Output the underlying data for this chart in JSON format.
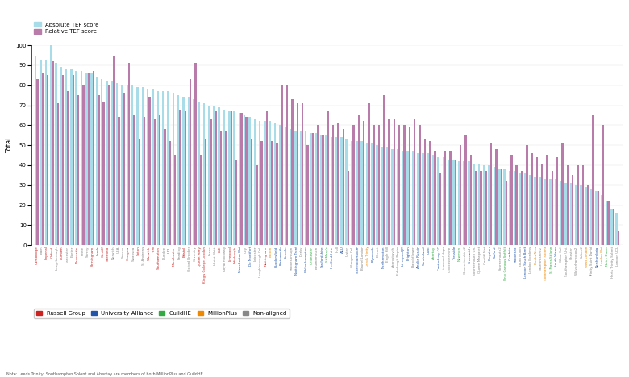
{
  "ylabel": "Total",
  "legend_items": [
    {
      "label": "Absolute TEF score",
      "color": "#a8dce8"
    },
    {
      "label": "Relative TEF score",
      "color": "#b87baa"
    }
  ],
  "group_legend": [
    {
      "label": "Russell Group",
      "color": "#cc2222"
    },
    {
      "label": "University Alliance",
      "color": "#2255aa"
    },
    {
      "label": "GuildHE",
      "color": "#33aa44"
    },
    {
      "label": "MillionPlus",
      "color": "#ee8800"
    },
    {
      "label": "Non-aligned",
      "color": "#888888"
    }
  ],
  "note": "Note: Leeds Trinity, Southampton Solent and Abertay are members of both MillionPlus and GuildHE.",
  "universities": [
    {
      "name": "Cambridge",
      "absolute": 95,
      "relative": 83,
      "group": "Russell Group"
    },
    {
      "name": "Bath",
      "absolute": 93,
      "relative": 86,
      "group": "Non-aligned"
    },
    {
      "name": "Imperial",
      "absolute": 93,
      "relative": 85,
      "group": "Russell Group"
    },
    {
      "name": "Oxford",
      "absolute": 100,
      "relative": 92,
      "group": "Russell Group"
    },
    {
      "name": "Loughborough",
      "absolute": 91,
      "relative": 71,
      "group": "Non-aligned"
    },
    {
      "name": "Durham",
      "absolute": 89,
      "relative": 85,
      "group": "Russell Group"
    },
    {
      "name": "Lancaster",
      "absolute": 88,
      "relative": 77,
      "group": "Non-aligned"
    },
    {
      "name": "Exeter",
      "absolute": 88,
      "relative": 85,
      "group": "Non-aligned"
    },
    {
      "name": "Newcastle",
      "absolute": 87,
      "relative": 75,
      "group": "Russell Group"
    },
    {
      "name": "Keele",
      "absolute": 87,
      "relative": 80,
      "group": "Non-aligned"
    },
    {
      "name": "Surrey",
      "absolute": 86,
      "relative": 86,
      "group": "Non-aligned"
    },
    {
      "name": "Birmingham",
      "absolute": 86,
      "relative": 87,
      "group": "Russell Group"
    },
    {
      "name": "Leeds",
      "absolute": 84,
      "relative": 75,
      "group": "Russell Group"
    },
    {
      "name": "Cardiff",
      "absolute": 83,
      "relative": 72,
      "group": "Russell Group"
    },
    {
      "name": "Sheffield",
      "absolute": 82,
      "relative": 80,
      "group": "Russell Group"
    },
    {
      "name": "Norwich",
      "absolute": 82,
      "relative": 95,
      "group": "Non-aligned"
    },
    {
      "name": "UEA",
      "absolute": 81,
      "relative": 64,
      "group": "Non-aligned"
    },
    {
      "name": "Sussex",
      "absolute": 80,
      "relative": 76,
      "group": "Non-aligned"
    },
    {
      "name": "Glasgow",
      "absolute": 80,
      "relative": 91,
      "group": "Russell Group"
    },
    {
      "name": "Swansea",
      "absolute": 80,
      "relative": 65,
      "group": "Non-aligned"
    },
    {
      "name": "Soton",
      "absolute": 79,
      "relative": 53,
      "group": "Russell Group"
    },
    {
      "name": "St Andrews",
      "absolute": 79,
      "relative": 64,
      "group": "Non-aligned"
    },
    {
      "name": "Warwick",
      "absolute": 78,
      "relative": 74,
      "group": "Russell Group"
    },
    {
      "name": "York",
      "absolute": 78,
      "relative": 63,
      "group": "Russell Group"
    },
    {
      "name": "Southampton",
      "absolute": 77,
      "relative": 65,
      "group": "Russell Group"
    },
    {
      "name": "Dundee",
      "absolute": 77,
      "relative": 58,
      "group": "Non-aligned"
    },
    {
      "name": "UCL",
      "absolute": 77,
      "relative": 52,
      "group": "Russell Group"
    },
    {
      "name": "Manchester",
      "absolute": 76,
      "relative": 45,
      "group": "Russell Group"
    },
    {
      "name": "Reading",
      "absolute": 75,
      "relative": 68,
      "group": "Non-aligned"
    },
    {
      "name": "Bristol",
      "absolute": 74,
      "relative": 67,
      "group": "Russell Group"
    },
    {
      "name": "Oxford Brookes",
      "absolute": 74,
      "relative": 83,
      "group": "Non-aligned"
    },
    {
      "name": "Coventry",
      "absolute": 73,
      "relative": 91,
      "group": "Non-aligned"
    },
    {
      "name": "Queen Mary",
      "absolute": 72,
      "relative": 45,
      "group": "Russell Group"
    },
    {
      "name": "King's College London",
      "absolute": 71,
      "relative": 53,
      "group": "Russell Group"
    },
    {
      "name": "Essex",
      "absolute": 70,
      "relative": 63,
      "group": "Non-aligned"
    },
    {
      "name": "Heriot-Watt",
      "absolute": 70,
      "relative": 67,
      "group": "Non-aligned"
    },
    {
      "name": "LSE",
      "absolute": 69,
      "relative": 57,
      "group": "Russell Group"
    },
    {
      "name": "Royal Holloway",
      "absolute": 68,
      "relative": 57,
      "group": "Non-aligned"
    },
    {
      "name": "Liverpool",
      "absolute": 67,
      "relative": 67,
      "group": "Russell Group"
    },
    {
      "name": "Edinburgh",
      "absolute": 67,
      "relative": 43,
      "group": "Russell Group"
    },
    {
      "name": "Manchester Met",
      "absolute": 66,
      "relative": 66,
      "group": "University Alliance"
    },
    {
      "name": "City",
      "absolute": 65,
      "relative": 64,
      "group": "Non-aligned"
    },
    {
      "name": "De Montfort",
      "absolute": 64,
      "relative": 53,
      "group": "University Alliance"
    },
    {
      "name": "Leicester",
      "absolute": 63,
      "relative": 40,
      "group": "Non-aligned"
    },
    {
      "name": "Loughborough Col.",
      "absolute": 62,
      "relative": 52,
      "group": "Non-aligned"
    },
    {
      "name": "Nottingham",
      "absolute": 62,
      "relative": 67,
      "group": "Russell Group"
    },
    {
      "name": "Bolton",
      "absolute": 62,
      "relative": 52,
      "group": "MillionPlus"
    },
    {
      "name": "Huddersfield",
      "absolute": 61,
      "relative": 51,
      "group": "University Alliance"
    },
    {
      "name": "Portsmouth",
      "absolute": 60,
      "relative": 80,
      "group": "University Alliance"
    },
    {
      "name": "Lincoln",
      "absolute": 59,
      "relative": 80,
      "group": "University Alliance"
    },
    {
      "name": "Middlesbrough",
      "absolute": 58,
      "relative": 73,
      "group": "Non-aligned"
    },
    {
      "name": "Nottingham Trent",
      "absolute": 57,
      "relative": 71,
      "group": "University Alliance"
    },
    {
      "name": "Derby",
      "absolute": 57,
      "relative": 71,
      "group": "Non-aligned"
    },
    {
      "name": "Wolverhampton",
      "absolute": 57,
      "relative": 50,
      "group": "University Alliance"
    },
    {
      "name": "Chichester",
      "absolute": 56,
      "relative": 56,
      "group": "GuildHE"
    },
    {
      "name": "Bournemouth",
      "absolute": 56,
      "relative": 60,
      "group": "Non-aligned"
    },
    {
      "name": "Staffordshire",
      "absolute": 55,
      "relative": 55,
      "group": "University Alliance"
    },
    {
      "name": "St Mary's",
      "absolute": 55,
      "relative": 67,
      "group": "GuildHE"
    },
    {
      "name": "Hertfordshire",
      "absolute": 54,
      "relative": 60,
      "group": "University Alliance"
    },
    {
      "name": "Hull",
      "absolute": 54,
      "relative": 61,
      "group": "Non-aligned"
    },
    {
      "name": "ARU",
      "absolute": 54,
      "relative": 58,
      "group": "University Alliance"
    },
    {
      "name": "Ulster",
      "absolute": 53,
      "relative": 37,
      "group": "Non-aligned"
    },
    {
      "name": "Glasgow Cal.",
      "absolute": 52,
      "relative": 60,
      "group": "Non-aligned"
    },
    {
      "name": "Sheffield Hallam",
      "absolute": 52,
      "relative": 65,
      "group": "University Alliance"
    },
    {
      "name": "Brunel London",
      "absolute": 52,
      "relative": 62,
      "group": "Non-aligned"
    },
    {
      "name": "Leeds Trinity",
      "absolute": 51,
      "relative": 71,
      "group": "MillionPlus"
    },
    {
      "name": "Plymouth",
      "absolute": 51,
      "relative": 60,
      "group": "University Alliance"
    },
    {
      "name": "Dorset",
      "absolute": 50,
      "relative": 60,
      "group": "Non-aligned"
    },
    {
      "name": "Northampton",
      "absolute": 49,
      "relative": 75,
      "group": "University Alliance"
    },
    {
      "name": "Eagle Hill",
      "absolute": 49,
      "relative": 63,
      "group": "Non-aligned"
    },
    {
      "name": "Aberystwyth",
      "absolute": 48,
      "relative": 63,
      "group": "Non-aligned"
    },
    {
      "name": "Edinburgh Napier",
      "absolute": 48,
      "relative": 60,
      "group": "Non-aligned"
    },
    {
      "name": "Liverpool JM",
      "absolute": 47,
      "relative": 60,
      "group": "University Alliance"
    },
    {
      "name": "Brighton",
      "absolute": 47,
      "relative": 59,
      "group": "University Alliance"
    },
    {
      "name": "Blanchflower",
      "absolute": 47,
      "relative": 63,
      "group": "Non-aligned"
    },
    {
      "name": "Anglia Ruskin",
      "absolute": 46,
      "relative": 60,
      "group": "University Alliance"
    },
    {
      "name": "Sunderland",
      "absolute": 46,
      "relative": 53,
      "group": "University Alliance"
    },
    {
      "name": "UWE",
      "absolute": 46,
      "relative": 52,
      "group": "University Alliance"
    },
    {
      "name": "Abertay",
      "absolute": 45,
      "relative": 47,
      "group": "GuildHE"
    },
    {
      "name": "Canterbury CC",
      "absolute": 44,
      "relative": 36,
      "group": "University Alliance"
    },
    {
      "name": "Liverpool Hope",
      "absolute": 44,
      "relative": 47,
      "group": "Non-aligned"
    },
    {
      "name": "Gloucestershire",
      "absolute": 43,
      "relative": 47,
      "group": "Non-aligned"
    },
    {
      "name": "Teesside",
      "absolute": 43,
      "relative": 43,
      "group": "University Alliance"
    },
    {
      "name": "Newman",
      "absolute": 42,
      "relative": 50,
      "group": "GuildHE"
    },
    {
      "name": "Gloucestershire2",
      "absolute": 42,
      "relative": 55,
      "group": "Non-aligned"
    },
    {
      "name": "Greenwich",
      "absolute": 42,
      "relative": 45,
      "group": "University Alliance"
    },
    {
      "name": "Bournemouth Un.",
      "absolute": 41,
      "relative": 37,
      "group": "Non-aligned"
    },
    {
      "name": "Queen Margaret",
      "absolute": 41,
      "relative": 37,
      "group": "Non-aligned"
    },
    {
      "name": "Cardiff Met",
      "absolute": 40,
      "relative": 37,
      "group": "Non-aligned"
    },
    {
      "name": "Kingston",
      "absolute": 40,
      "relative": 51,
      "group": "University Alliance"
    },
    {
      "name": "Salford",
      "absolute": 39,
      "relative": 48,
      "group": "University Alliance"
    },
    {
      "name": "Bournemouth2",
      "absolute": 38,
      "relative": 38,
      "group": "Non-aligned"
    },
    {
      "name": "Univ Campus Suffolk",
      "absolute": 38,
      "relative": 32,
      "group": "GuildHE"
    },
    {
      "name": "Cumbria",
      "absolute": 37,
      "relative": 45,
      "group": "University Alliance"
    },
    {
      "name": "Middlesex",
      "absolute": 37,
      "relative": 40,
      "group": "University Alliance"
    },
    {
      "name": "South Bucks",
      "absolute": 36,
      "relative": 37,
      "group": "Non-aligned"
    },
    {
      "name": "London South Bank",
      "absolute": 36,
      "relative": 50,
      "group": "University Alliance"
    },
    {
      "name": "London Bordens",
      "absolute": 35,
      "relative": 46,
      "group": "Non-aligned"
    },
    {
      "name": "Bucks New",
      "absolute": 34,
      "relative": 44,
      "group": "MillionPlus"
    },
    {
      "name": "Staffordshire2",
      "absolute": 34,
      "relative": 41,
      "group": "Non-aligned"
    },
    {
      "name": "Southampton Solent",
      "absolute": 33,
      "relative": 45,
      "group": "MillionPlus"
    },
    {
      "name": "St Marks St John",
      "absolute": 33,
      "relative": 37,
      "group": "GuildHE"
    },
    {
      "name": "South Wales",
      "absolute": 33,
      "relative": 44,
      "group": "University Alliance"
    },
    {
      "name": "Glou. Col.",
      "absolute": 32,
      "relative": 51,
      "group": "Non-aligned"
    },
    {
      "name": "Southampton Uni.",
      "absolute": 31,
      "relative": 40,
      "group": "Non-aligned"
    },
    {
      "name": "Chester",
      "absolute": 31,
      "relative": 35,
      "group": "Non-aligned"
    },
    {
      "name": "Wolverhampton2",
      "absolute": 30,
      "relative": 40,
      "group": "Non-aligned"
    },
    {
      "name": "Bolton2",
      "absolute": 30,
      "relative": 40,
      "group": "Non-aligned"
    },
    {
      "name": "West London",
      "absolute": 29,
      "relative": 30,
      "group": "MillionPlus"
    },
    {
      "name": "Trinity Saint David",
      "absolute": 28,
      "relative": 65,
      "group": "Non-aligned"
    },
    {
      "name": "Northumbria",
      "absolute": 27,
      "relative": 27,
      "group": "University Alliance"
    },
    {
      "name": "London Met",
      "absolute": 25,
      "relative": 60,
      "group": "MillionPlus"
    },
    {
      "name": "Notre Dame",
      "absolute": 22,
      "relative": 22,
      "group": "GuildHE"
    },
    {
      "name": "Herts Trinity Solent",
      "absolute": 18,
      "relative": 18,
      "group": "Non-aligned"
    },
    {
      "name": "London UCL",
      "absolute": 16,
      "relative": 7,
      "group": "Non-aligned"
    }
  ]
}
